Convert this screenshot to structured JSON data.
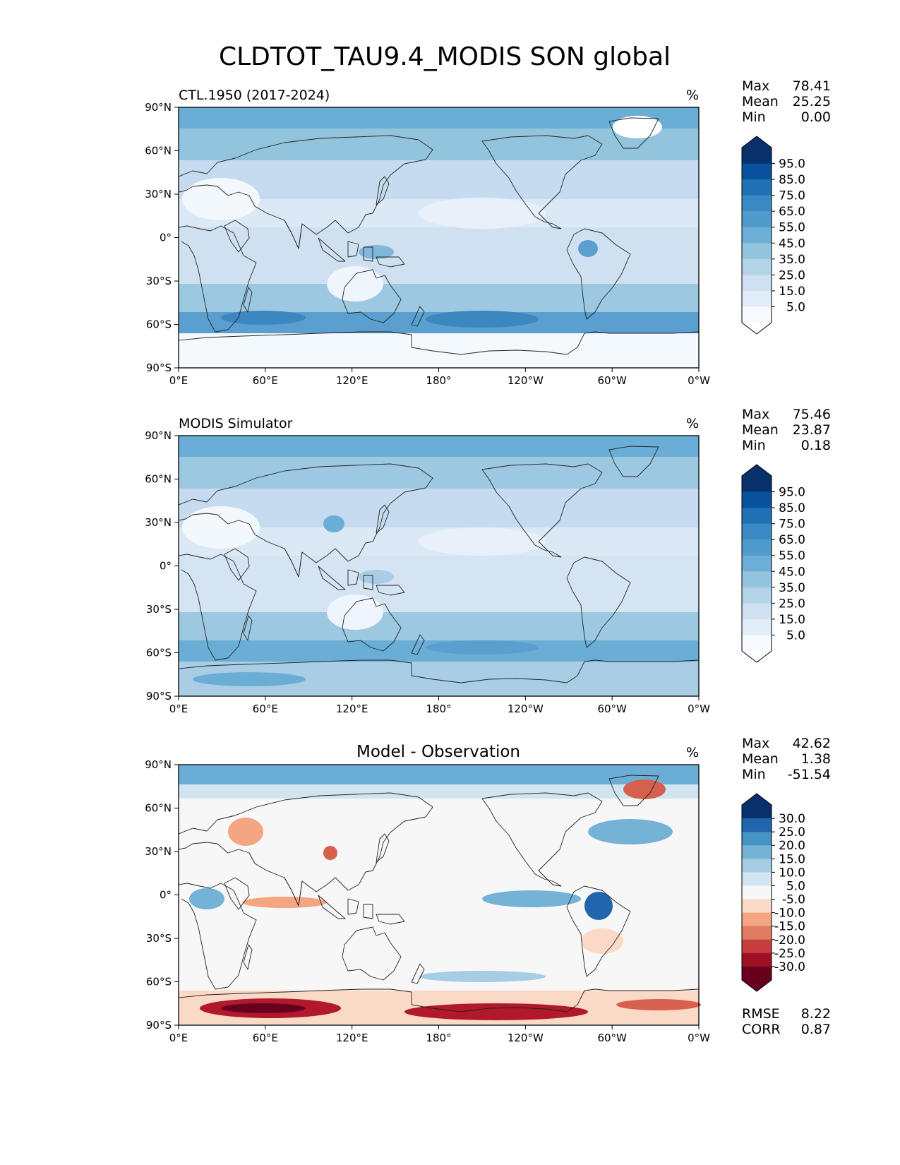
{
  "figure": {
    "title": "CLDTOT_TAU9.4_MODIS SON global"
  },
  "axes": {
    "lat_ticks": [
      "90°N",
      "60°N",
      "30°N",
      "0°",
      "30°S",
      "60°S",
      "90°S"
    ],
    "lon_ticks": [
      "0°E",
      "60°E",
      "120°E",
      "180°",
      "120°W",
      "60°W",
      "0°W"
    ]
  },
  "panels": [
    {
      "left_title": "CTL.1950 (2017-2024)",
      "center_title": "",
      "units": "%",
      "stats": [
        {
          "label": "Max",
          "value": "78.41"
        },
        {
          "label": "Mean",
          "value": "25.25"
        },
        {
          "label": "Min",
          "value": "0.00"
        }
      ],
      "colorbar": {
        "labels": [
          "95.0",
          "85.0",
          "75.0",
          "65.0",
          "55.0",
          "45.0",
          "35.0",
          "25.0",
          "15.0",
          "5.0"
        ],
        "colors": [
          "#08306b",
          "#08519c",
          "#2171b5",
          "#3a89c4",
          "#4f9bcb",
          "#6caed6",
          "#92c4de",
          "#b3d3e8",
          "#cee0f2",
          "#e1edf8",
          "#f7fbff"
        ],
        "extend_top_color": "#08306b",
        "extend_bottom_color": "#ffffff"
      },
      "extra_stats": []
    },
    {
      "left_title": "MODIS Simulator",
      "center_title": "",
      "units": "%",
      "stats": [
        {
          "label": "Max",
          "value": "75.46"
        },
        {
          "label": "Mean",
          "value": "23.87"
        },
        {
          "label": "Min",
          "value": "0.18"
        }
      ],
      "colorbar": {
        "labels": [
          "95.0",
          "85.0",
          "75.0",
          "65.0",
          "55.0",
          "45.0",
          "35.0",
          "25.0",
          "15.0",
          "5.0"
        ],
        "colors": [
          "#08306b",
          "#08519c",
          "#2171b5",
          "#3a89c4",
          "#4f9bcb",
          "#6caed6",
          "#92c4de",
          "#b3d3e8",
          "#cee0f2",
          "#e1edf8",
          "#f7fbff"
        ],
        "extend_top_color": "#08306b",
        "extend_bottom_color": "#ffffff"
      },
      "extra_stats": []
    },
    {
      "left_title": "",
      "center_title": "Model - Observation",
      "units": "%",
      "stats": [
        {
          "label": "Max",
          "value": "42.62"
        },
        {
          "label": "Mean",
          "value": "1.38"
        },
        {
          "label": "Min",
          "value": "-51.54"
        }
      ],
      "colorbar": {
        "labels": [
          "30.0",
          "25.0",
          "20.0",
          "15.0",
          "10.0",
          "5.0",
          "-5.0",
          "-10.0",
          "-15.0",
          "-20.0",
          "-25.0",
          "-30.0"
        ],
        "colors": [
          "#08306b",
          "#2166ac",
          "#4393c3",
          "#74b3d6",
          "#a6cde3",
          "#d1e5f0",
          "#f7f7f7",
          "#fbd9c7",
          "#f4a582",
          "#e07b62",
          "#c53e3d",
          "#a01025",
          "#67001f"
        ],
        "extend_top_color": "#08306b",
        "extend_bottom_color": "#67001f"
      },
      "extra_stats": [
        {
          "label": "RMSE",
          "value": "8.22"
        },
        {
          "label": "CORR",
          "value": "0.87"
        }
      ]
    }
  ]
}
